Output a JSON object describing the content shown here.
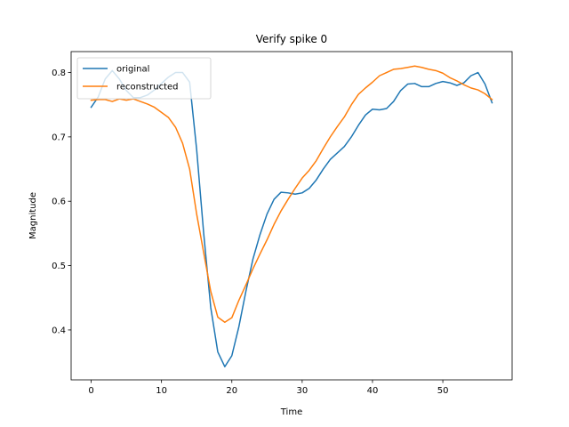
{
  "chart_data": {
    "type": "line",
    "title": "Verify spike 0",
    "xlabel": "Time",
    "ylabel": "Magnitude",
    "xlim": [
      -2.85,
      59.85
    ],
    "ylim": [
      0.3225,
      0.8325
    ],
    "xticks": [
      0,
      10,
      20,
      30,
      40,
      50
    ],
    "yticks": [
      0.4,
      0.5,
      0.6,
      0.7,
      0.8
    ],
    "ytick_labels": [
      "0.4",
      "0.5",
      "0.6",
      "0.7",
      "0.8"
    ],
    "legend_position": "upper-left",
    "grid": false,
    "series": [
      {
        "name": "original",
        "color": "#1f77b4",
        "x": [
          0,
          1,
          2,
          3,
          4,
          5,
          6,
          7,
          8,
          9,
          10,
          11,
          12,
          13,
          14,
          15,
          16,
          17,
          18,
          19,
          20,
          21,
          22,
          23,
          24,
          25,
          26,
          27,
          28,
          29,
          30,
          31,
          32,
          33,
          34,
          35,
          36,
          37,
          38,
          39,
          40,
          41,
          42,
          43,
          44,
          45,
          46,
          47,
          48,
          49,
          50,
          51,
          52,
          53,
          54,
          55,
          56,
          57
        ],
        "values": [
          0.746,
          0.762,
          0.79,
          0.803,
          0.79,
          0.772,
          0.761,
          0.761,
          0.765,
          0.773,
          0.783,
          0.793,
          0.8,
          0.8,
          0.785,
          0.68,
          0.55,
          0.435,
          0.366,
          0.343,
          0.36,
          0.405,
          0.46,
          0.51,
          0.548,
          0.58,
          0.603,
          0.614,
          0.613,
          0.611,
          0.613,
          0.62,
          0.633,
          0.65,
          0.665,
          0.675,
          0.685,
          0.7,
          0.718,
          0.734,
          0.743,
          0.742,
          0.744,
          0.755,
          0.772,
          0.782,
          0.783,
          0.778,
          0.778,
          0.783,
          0.786,
          0.784,
          0.78,
          0.784,
          0.795,
          0.8,
          0.782,
          0.753
        ]
      },
      {
        "name": "reconstructed",
        "color": "#ff7f0e",
        "x": [
          0,
          1,
          2,
          3,
          4,
          5,
          6,
          7,
          8,
          9,
          10,
          11,
          12,
          13,
          14,
          15,
          16,
          17,
          18,
          19,
          20,
          21,
          22,
          23,
          24,
          25,
          26,
          27,
          28,
          29,
          30,
          31,
          32,
          33,
          34,
          35,
          36,
          37,
          38,
          39,
          40,
          41,
          42,
          43,
          44,
          45,
          46,
          47,
          48,
          49,
          50,
          51,
          52,
          53,
          54,
          55,
          56,
          57
        ],
        "values": [
          0.757,
          0.758,
          0.758,
          0.755,
          0.759,
          0.757,
          0.759,
          0.755,
          0.751,
          0.746,
          0.738,
          0.73,
          0.715,
          0.69,
          0.65,
          0.58,
          0.52,
          0.46,
          0.42,
          0.412,
          0.419,
          0.446,
          0.47,
          0.495,
          0.518,
          0.54,
          0.564,
          0.585,
          0.603,
          0.62,
          0.636,
          0.648,
          0.663,
          0.682,
          0.7,
          0.716,
          0.731,
          0.75,
          0.766,
          0.776,
          0.785,
          0.795,
          0.8,
          0.805,
          0.806,
          0.808,
          0.81,
          0.808,
          0.805,
          0.803,
          0.799,
          0.792,
          0.787,
          0.781,
          0.776,
          0.773,
          0.767,
          0.758
        ]
      }
    ]
  }
}
